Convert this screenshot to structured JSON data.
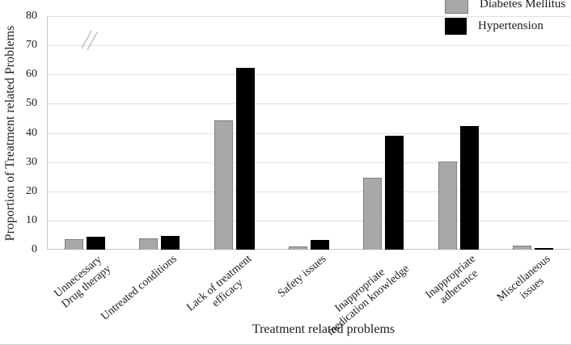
{
  "chart_data": {
    "type": "bar",
    "title": "",
    "xlabel": "Treatment related problems",
    "ylabel": "Proportion of Treatment related Problems",
    "categories": [
      "Unnecessary\nDrug therapy",
      "Untreated conditions",
      "Lack of treatment\nefficacy",
      "Safety issues",
      "Inappropriate\nmedication knowledge",
      "Inappropriate\nadherence",
      "Miscellaneous\nissues"
    ],
    "series": [
      {
        "name": "Diabetes Mellitus",
        "color": "#a8a8a8",
        "values": [
          3.5,
          3.9,
          44.4,
          1.0,
          24.7,
          30.2,
          1.5
        ]
      },
      {
        "name": "Hypertension",
        "color": "#000000",
        "values": [
          4.4,
          4.8,
          62.3,
          3.4,
          39.0,
          42.4,
          0.5
        ]
      }
    ],
    "y_ticks": [
      0,
      10,
      20,
      30,
      40,
      50,
      60,
      70,
      80
    ],
    "ylim": [
      0,
      80
    ],
    "y_axis_break": true,
    "grid": "horizontal",
    "legend_position": "top-right",
    "colors": {
      "grid": "#e0e0e0",
      "axis": "#c4c4c4",
      "text": "#1c1c1c"
    }
  }
}
